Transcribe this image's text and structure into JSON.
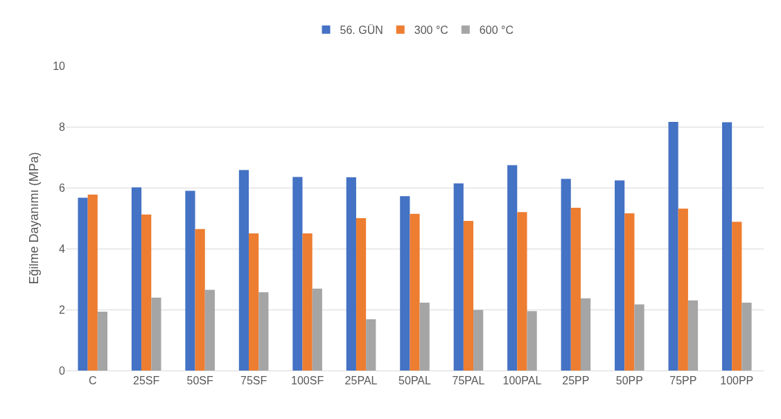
{
  "chart_data": {
    "type": "bar",
    "ylabel": "Eğilme Dayanımı (MPa)",
    "categories": [
      "C",
      "25SF",
      "50SF",
      "75SF",
      "100SF",
      "25PAL",
      "50PAL",
      "75PAL",
      "100PAL",
      "25PP",
      "50PP",
      "75PP",
      "100PP"
    ],
    "series": [
      {
        "name": "56. GÜN",
        "color": "#4472c4",
        "values": [
          5.67,
          6.01,
          5.9,
          6.58,
          6.35,
          6.34,
          5.72,
          6.14,
          6.74,
          6.29,
          6.24,
          8.16,
          8.15
        ]
      },
      {
        "name": "300 °C",
        "color": "#ed7d31",
        "values": [
          5.77,
          5.12,
          4.64,
          4.5,
          4.5,
          5.0,
          5.14,
          4.91,
          5.2,
          5.34,
          5.16,
          5.31,
          4.88
        ]
      },
      {
        "name": "600 °C",
        "color": "#a5a5a5",
        "values": [
          1.93,
          2.39,
          2.65,
          2.57,
          2.69,
          1.68,
          2.23,
          1.99,
          1.95,
          2.37,
          2.17,
          2.3,
          2.23
        ]
      }
    ],
    "ylim": [
      0,
      10
    ],
    "yticks": [
      0,
      2,
      4,
      6,
      8,
      10
    ],
    "grid": "y",
    "legend": "top"
  }
}
